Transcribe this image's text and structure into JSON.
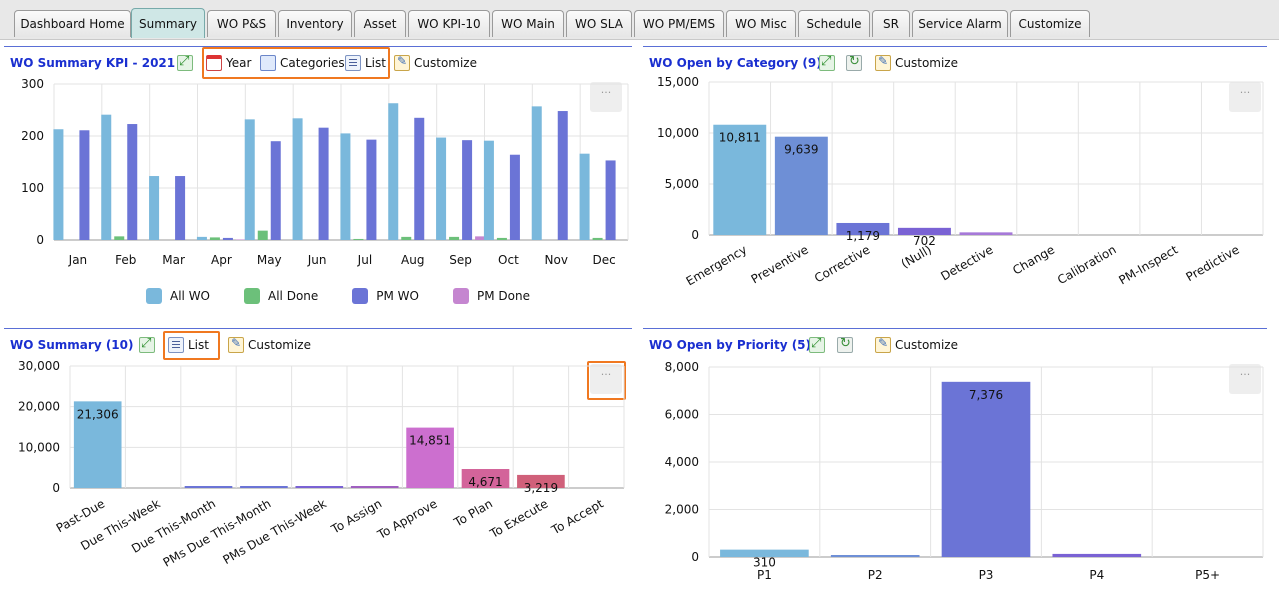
{
  "tabs": [
    "Dashboard Home",
    "Summary",
    "WO P&S",
    "Inventory",
    "Asset",
    "WO KPI-10",
    "WO Main",
    "WO SLA",
    "WO PM/EMS",
    "WO Misc",
    "Schedule",
    "SR",
    "Service Alarm",
    "Customize"
  ],
  "active_tab": "Summary",
  "toolbar": {
    "year": "Year",
    "categories": "Categories",
    "list": "List",
    "customize": "Customize",
    "more": "···"
  },
  "panels": {
    "kpi": {
      "title": "WO Summary KPI - 2021"
    },
    "category": {
      "title": "WO Open by Category (9)"
    },
    "summary": {
      "title": "WO Summary (10)"
    },
    "priority": {
      "title": "WO Open by Priority (5)"
    }
  },
  "chart_data": [
    {
      "id": "kpi",
      "type": "bar",
      "title": "WO Summary KPI - 2021",
      "categories": [
        "Jan",
        "Feb",
        "Mar",
        "Apr",
        "May",
        "Jun",
        "Jul",
        "Aug",
        "Sep",
        "Oct",
        "Nov",
        "Dec"
      ],
      "series": [
        {
          "name": "All WO",
          "color": "#7ab8dc",
          "values": [
            213,
            241,
            123,
            6,
            232,
            234,
            205,
            263,
            197,
            191,
            257,
            166
          ]
        },
        {
          "name": "All Done",
          "color": "#6cc07a",
          "values": [
            0,
            7,
            0,
            5,
            18,
            0,
            2,
            6,
            6,
            4,
            0,
            4
          ]
        },
        {
          "name": "PM WO",
          "color": "#6b74d6",
          "values": [
            211,
            223,
            123,
            4,
            190,
            216,
            193,
            235,
            192,
            164,
            248,
            153
          ]
        },
        {
          "name": "PM Done",
          "color": "#c586d0",
          "values": [
            0,
            0,
            0,
            1,
            0,
            0,
            0,
            0,
            7,
            0,
            0,
            0
          ]
        }
      ],
      "ylim": [
        0,
        300
      ],
      "yticks": [
        "0",
        "100",
        "200",
        "300"
      ],
      "legend": "bottom",
      "grid": true
    },
    {
      "id": "category",
      "type": "bar",
      "title": "WO Open by Category (9)",
      "categories": [
        "Emergency",
        "Preventive",
        "Corrective",
        "(Null)",
        "Detective",
        "Change",
        "Calibration",
        "PM-Inspect",
        "Predictive"
      ],
      "values": [
        10811,
        9639,
        1179,
        702,
        260,
        0,
        0,
        0,
        0
      ],
      "data_labels": [
        "10,811",
        "9,639",
        "1,179",
        "702",
        "",
        "",
        "",
        "",
        ""
      ],
      "colors": [
        "#7ab8dc",
        "#6e8fd6",
        "#6b74d6",
        "#7a62d4",
        "#a679d8",
        "#7ab8dc",
        "#7ab8dc",
        "#7ab8dc",
        "#7ab8dc"
      ],
      "ylim": [
        0,
        15000
      ],
      "yticks": [
        "0",
        "5,000",
        "10,000",
        "15,000"
      ],
      "grid": true
    },
    {
      "id": "summary",
      "type": "bar",
      "title": "WO Summary (10)",
      "categories": [
        "Past-Due",
        "Due This-Week",
        "Due This-Month",
        "PMs Due This-Month",
        "PMs Due This-Week",
        "To Assign",
        "To Approve",
        "To Plan",
        "To Execute",
        "To Accept"
      ],
      "values": [
        21306,
        0,
        120,
        80,
        60,
        150,
        14851,
        4671,
        3219,
        0
      ],
      "data_labels": [
        "21,306",
        "",
        "",
        "",
        "",
        "",
        "14,851",
        "4,671",
        "3,219",
        ""
      ],
      "colors": [
        "#7ab8dc",
        "#7ab8dc",
        "#6b74d6",
        "#6b74d6",
        "#7a62d4",
        "#a05fc0",
        "#cc6fcf",
        "#d3649a",
        "#d0607a",
        "#7ab8dc"
      ],
      "ylim": [
        0,
        30000
      ],
      "yticks": [
        "0",
        "10,000",
        "20,000",
        "30,000"
      ],
      "grid": true
    },
    {
      "id": "priority",
      "type": "bar",
      "title": "WO Open by Priority (5)",
      "categories": [
        "P1",
        "P2",
        "P3",
        "P4",
        "P5+"
      ],
      "values": [
        310,
        30,
        7376,
        130,
        0
      ],
      "data_labels": [
        "310",
        "",
        "7,376",
        "",
        ""
      ],
      "colors": [
        "#7ab8dc",
        "#6e8fd6",
        "#6b74d6",
        "#7a62d4",
        "#a679d8"
      ],
      "ylim": [
        0,
        8000
      ],
      "yticks": [
        "0",
        "2,000",
        "4,000",
        "6,000",
        "8,000"
      ],
      "grid": true
    }
  ]
}
